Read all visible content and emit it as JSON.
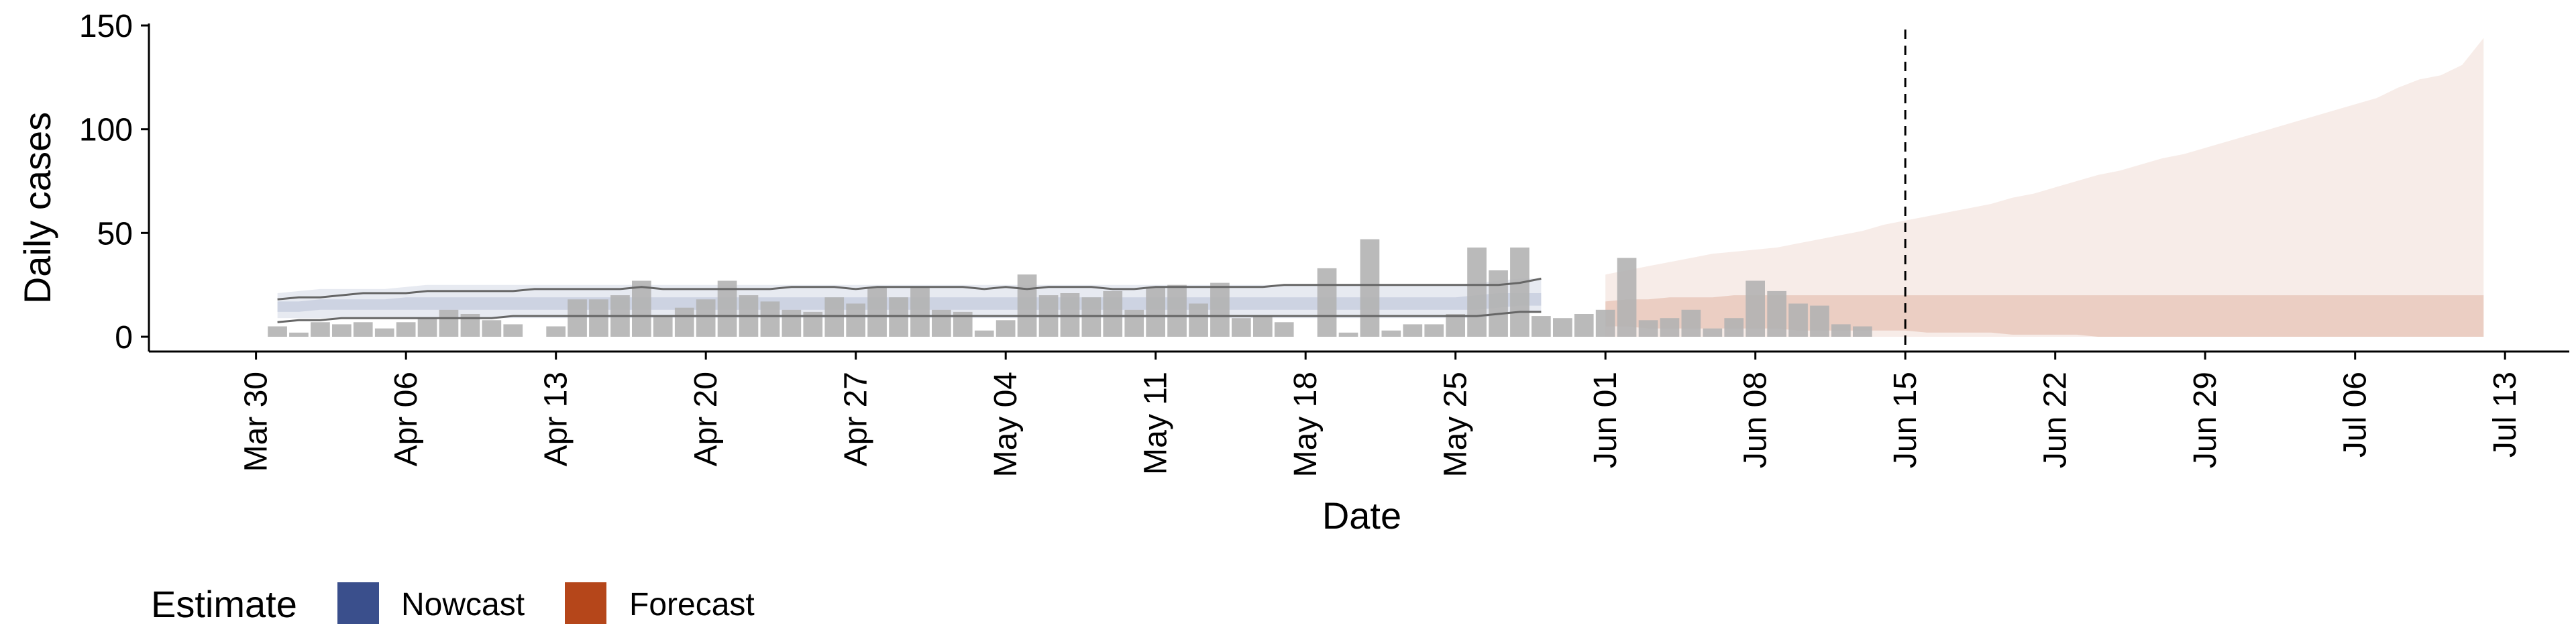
{
  "chart_data": {
    "type": "bar",
    "title": "",
    "xlabel": "Date",
    "ylabel": "Daily cases",
    "ylim": [
      0,
      150
    ],
    "xlim": [
      "2020-03-25",
      "2020-07-16"
    ],
    "y_ticks": [
      0,
      50,
      100,
      150
    ],
    "x_ticks": [
      {
        "date": "2020-03-30",
        "label": "Mar 30"
      },
      {
        "date": "2020-04-06",
        "label": "Apr 06"
      },
      {
        "date": "2020-04-13",
        "label": "Apr 13"
      },
      {
        "date": "2020-04-20",
        "label": "Apr 20"
      },
      {
        "date": "2020-04-27",
        "label": "Apr 27"
      },
      {
        "date": "2020-05-04",
        "label": "May 04"
      },
      {
        "date": "2020-05-11",
        "label": "May 11"
      },
      {
        "date": "2020-05-18",
        "label": "May 18"
      },
      {
        "date": "2020-05-25",
        "label": "May 25"
      },
      {
        "date": "2020-06-01",
        "label": "Jun 01"
      },
      {
        "date": "2020-06-08",
        "label": "Jun 08"
      },
      {
        "date": "2020-06-15",
        "label": "Jun 15"
      },
      {
        "date": "2020-06-22",
        "label": "Jun 22"
      },
      {
        "date": "2020-06-29",
        "label": "Jun 29"
      },
      {
        "date": "2020-07-06",
        "label": "Jul 06"
      },
      {
        "date": "2020-07-13",
        "label": "Jul 13"
      }
    ],
    "bars": {
      "start_date": "2020-03-31",
      "values": [
        5,
        2,
        7,
        6,
        7,
        4,
        7,
        9,
        13,
        11,
        8,
        6,
        0,
        5,
        18,
        18,
        20,
        27,
        10,
        14,
        18,
        27,
        20,
        17,
        13,
        12,
        19,
        16,
        24,
        19,
        24,
        13,
        12,
        3,
        8,
        30,
        20,
        21,
        19,
        22,
        13,
        24,
        25,
        16,
        26,
        9,
        10,
        7,
        0,
        33,
        2,
        47,
        3,
        6,
        6,
        11,
        43,
        32,
        43,
        10,
        9,
        11,
        13,
        38,
        8,
        9,
        13,
        4,
        9,
        27,
        22,
        16,
        15,
        6,
        5
      ],
      "color": "#b3b3b3"
    },
    "nowcast_band": {
      "label": "Nowcast",
      "color": "#3a4f8c",
      "start_date": "2020-03-31",
      "outer_lower": [
        9,
        9,
        9,
        9,
        9,
        9,
        9,
        9,
        9,
        9,
        9,
        9,
        9,
        9,
        9,
        9,
        9,
        9,
        9,
        9,
        9,
        9,
        9,
        9,
        9,
        9,
        9,
        9,
        9,
        9,
        9,
        9,
        9,
        9,
        9,
        9,
        9,
        9,
        9,
        9,
        9,
        9,
        9,
        9,
        9,
        9,
        9,
        9,
        9,
        9,
        9,
        9,
        9,
        9,
        9,
        9,
        9,
        10,
        12,
        12
      ],
      "outer_upper": [
        21,
        22,
        23,
        23,
        23,
        23,
        24,
        25,
        25,
        25,
        25,
        25,
        25,
        25,
        25,
        25,
        25,
        25,
        25,
        25,
        25,
        25,
        25,
        25,
        25,
        25,
        25,
        25,
        25,
        25,
        25,
        25,
        25,
        25,
        25,
        25,
        25,
        25,
        25,
        25,
        25,
        25,
        25,
        25,
        25,
        25,
        25,
        25,
        25,
        25,
        25,
        25,
        25,
        25,
        25,
        25,
        26,
        27,
        28,
        28
      ],
      "inner_lower": [
        12,
        12,
        13,
        13,
        13,
        13,
        13,
        13,
        13,
        13,
        13,
        13,
        13,
        13,
        13,
        13,
        13,
        13,
        13,
        13,
        13,
        13,
        13,
        13,
        13,
        13,
        13,
        13,
        13,
        13,
        13,
        13,
        13,
        13,
        13,
        13,
        13,
        13,
        13,
        13,
        13,
        13,
        13,
        13,
        13,
        13,
        13,
        13,
        13,
        13,
        13,
        13,
        13,
        13,
        13,
        13,
        13,
        14,
        15,
        15
      ],
      "inner_upper": [
        17,
        17,
        18,
        18,
        18,
        18,
        19,
        19,
        19,
        19,
        19,
        19,
        19,
        19,
        19,
        19,
        19,
        19,
        19,
        19,
        19,
        19,
        19,
        19,
        19,
        19,
        19,
        19,
        19,
        19,
        19,
        19,
        19,
        19,
        19,
        19,
        19,
        19,
        19,
        19,
        19,
        19,
        19,
        19,
        19,
        19,
        19,
        19,
        19,
        19,
        19,
        19,
        19,
        19,
        19,
        19,
        20,
        21,
        21,
        21
      ],
      "upper_line": [
        18,
        19,
        19,
        20,
        21,
        21,
        21,
        22,
        22,
        22,
        22,
        22,
        23,
        23,
        23,
        23,
        23,
        24,
        23,
        23,
        23,
        23,
        23,
        23,
        24,
        24,
        24,
        23,
        24,
        24,
        24,
        24,
        24,
        23,
        24,
        23,
        24,
        24,
        24,
        23,
        23,
        24,
        24,
        24,
        24,
        24,
        24,
        25,
        25,
        25,
        25,
        25,
        25,
        25,
        25,
        25,
        25,
        25,
        26,
        28
      ],
      "lower_line": [
        7,
        8,
        8,
        9,
        9,
        9,
        9,
        9,
        9,
        9,
        9,
        10,
        10,
        10,
        10,
        10,
        10,
        10,
        10,
        10,
        10,
        10,
        10,
        10,
        10,
        10,
        10,
        10,
        10,
        10,
        10,
        10,
        10,
        10,
        10,
        10,
        10,
        10,
        10,
        10,
        10,
        10,
        10,
        10,
        10,
        10,
        10,
        10,
        10,
        10,
        10,
        10,
        10,
        10,
        10,
        10,
        10,
        11,
        12,
        12
      ]
    },
    "forecast_band": {
      "label": "Forecast",
      "color": "#b5461a",
      "start_date": "2020-06-01",
      "outer_lower": [
        0,
        0,
        0,
        0,
        0,
        0,
        0,
        0,
        0,
        0,
        0,
        0,
        0,
        0,
        0,
        0,
        0,
        0,
        0,
        0,
        0,
        0,
        0,
        0,
        0,
        0,
        0,
        0,
        0,
        0,
        0,
        0,
        0,
        0,
        0,
        0,
        0,
        0,
        0,
        0,
        0,
        0
      ],
      "outer_upper": [
        30,
        32,
        34,
        36,
        38,
        40,
        41,
        42,
        43,
        45,
        47,
        49,
        51,
        54,
        56,
        58,
        60,
        62,
        64,
        67,
        69,
        72,
        75,
        78,
        80,
        83,
        86,
        88,
        91,
        94,
        97,
        100,
        103,
        106,
        109,
        112,
        115,
        120,
        124,
        126,
        131,
        144
      ],
      "inner_lower": [
        5,
        5,
        4,
        4,
        4,
        4,
        4,
        4,
        4,
        3,
        3,
        3,
        3,
        3,
        3,
        2,
        2,
        2,
        2,
        1,
        1,
        1,
        1,
        0,
        0,
        0,
        0,
        0,
        0,
        0,
        0,
        0,
        0,
        0,
        0,
        0,
        0,
        0,
        0,
        0,
        0,
        0
      ],
      "inner_upper": [
        17,
        18,
        18,
        19,
        19,
        19,
        20,
        20,
        20,
        20,
        20,
        20,
        20,
        20,
        20,
        20,
        20,
        20,
        20,
        20,
        20,
        20,
        20,
        20,
        20,
        20,
        20,
        20,
        20,
        20,
        20,
        20,
        20,
        20,
        20,
        20,
        20,
        20,
        20,
        20,
        20,
        20
      ]
    },
    "vline": {
      "date": "2020-06-15",
      "style": "dashed"
    },
    "legend": {
      "title": "Estimate",
      "position": "bottom-left",
      "entries": [
        {
          "label": "Nowcast",
          "color": "#3a4f8c"
        },
        {
          "label": "Forecast",
          "color": "#b5461a"
        }
      ]
    },
    "grid": false
  }
}
